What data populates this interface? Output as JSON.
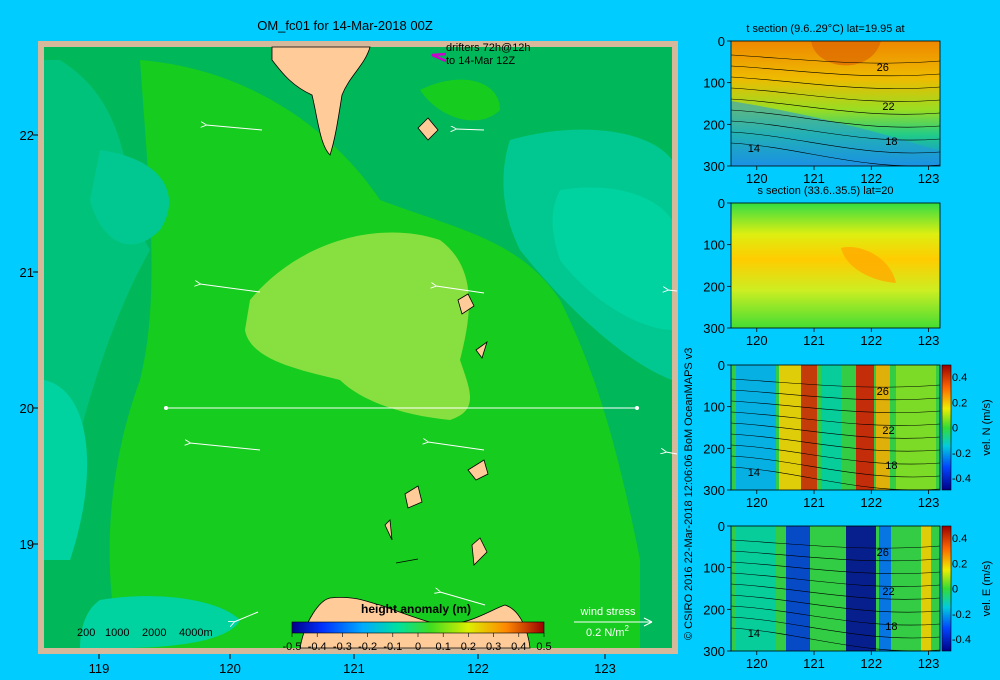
{
  "title": "OM_fc01 for 14-Mar-2018 00Z",
  "drifters_note": [
    "drifters 72h@12h",
    "to 14-Mar 12Z"
  ],
  "copyright": "© CSIRO 2016   22-Mar-2018 12:06:06 BoM OceanMAPS v3",
  "map": {
    "lon_ticks": [
      "119",
      "120",
      "121",
      "122",
      "123"
    ],
    "lat_ticks": [
      "22",
      "21",
      "20",
      "19"
    ],
    "depth_legend": [
      "200",
      "1000",
      "2000",
      "4000m"
    ],
    "colorbar_title": "height anomaly (m)",
    "colorbar_ticks": [
      "-0.5",
      "-0.4",
      "-0.3",
      "-0.2",
      "-0.1",
      "0",
      "0.1",
      "0.2",
      "0.3",
      "0.4",
      "0.5"
    ],
    "wind_label": "wind stress",
    "wind_scale": "0.2 N/m",
    "wind_scale_exp": "2",
    "colors": {
      "sea_dark": "#00b85a",
      "sea_mid": "#16cc1e",
      "sea_light": "#88e040",
      "sea_teal": "#00d2a0",
      "land": "#ffcc99",
      "shelf": "#d6b89a"
    }
  },
  "panels": [
    {
      "title": "t section (9.6..29°C) lat=19.95 at",
      "y_ticks": [
        "0",
        "100",
        "200",
        "300"
      ],
      "x_ticks": [
        "120",
        "121",
        "122",
        "123"
      ],
      "contour_labels": [
        "26",
        "22",
        "18",
        "14"
      ],
      "colorbar": null
    },
    {
      "title": "s section (33.6..35.5) lat=20",
      "y_ticks": [
        "0",
        "100",
        "200",
        "300"
      ],
      "x_ticks": [
        "120",
        "121",
        "122",
        "123"
      ],
      "contour_labels": [],
      "colorbar": null
    },
    {
      "title": "",
      "y_ticks": [
        "0",
        "100",
        "200",
        "300"
      ],
      "x_ticks": [
        "120",
        "121",
        "122",
        "123"
      ],
      "contour_labels": [
        "26",
        "22",
        "18",
        "14"
      ],
      "colorbar": {
        "label": "vel. N (m/s)",
        "ticks": [
          "0.4",
          "0.2",
          "0",
          "-0.2",
          "-0.4"
        ]
      }
    },
    {
      "title": "",
      "y_ticks": [
        "0",
        "100",
        "200",
        "300"
      ],
      "x_ticks": [
        "120",
        "121",
        "122",
        "123"
      ],
      "contour_labels": [
        "26",
        "22",
        "18",
        "14"
      ],
      "colorbar": {
        "label": "vel. E (m/s)",
        "ticks": [
          "0.4",
          "0.2",
          "0",
          "-0.2",
          "-0.4"
        ]
      }
    }
  ]
}
